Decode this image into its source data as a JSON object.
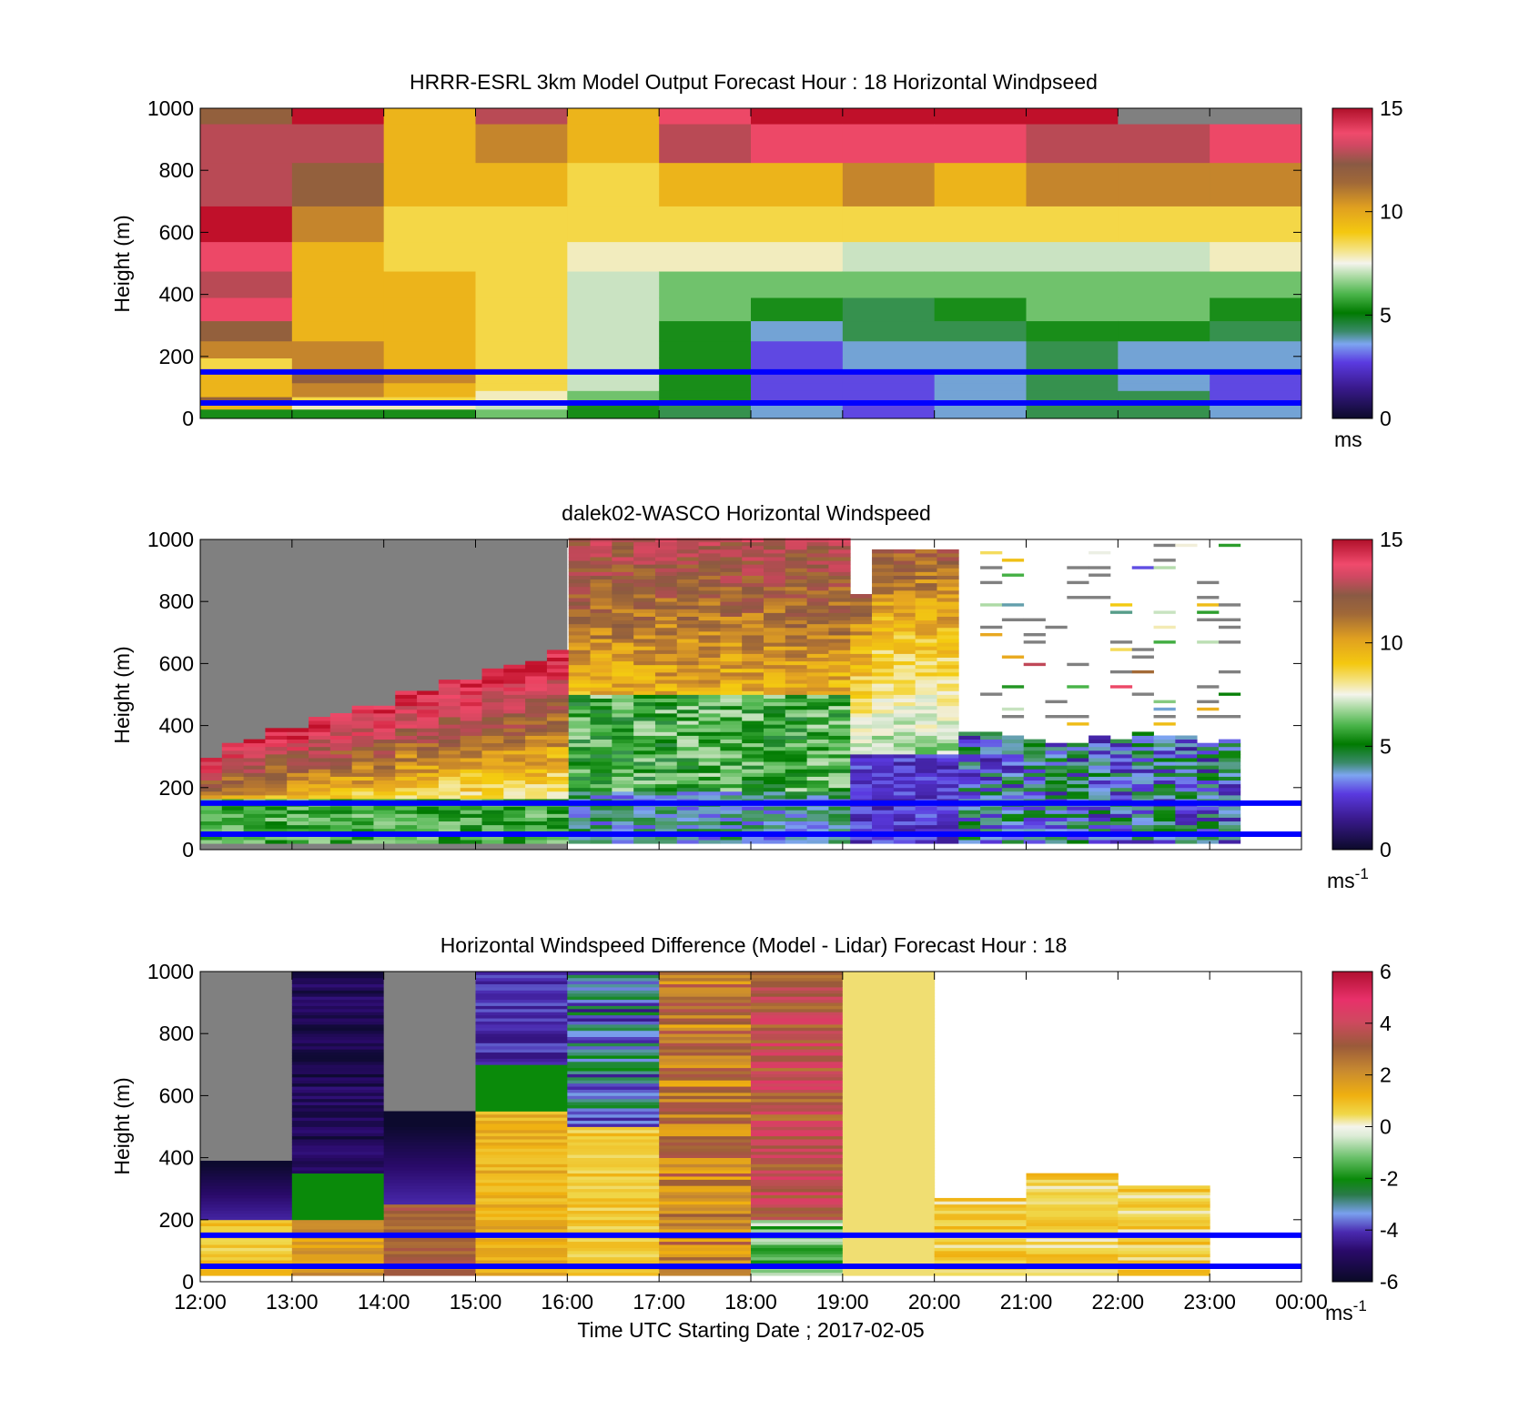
{
  "figure": {
    "xlabel": "Time UTC  Starting Date ; 2017-02-05",
    "time_ticks": [
      "12:00",
      "13:00",
      "14:00",
      "15:00",
      "16:00",
      "17:00",
      "18:00",
      "19:00",
      "20:00",
      "21:00",
      "22:00",
      "23:00",
      "00:00"
    ],
    "height_ticks": [
      "0",
      "200",
      "400",
      "600",
      "800",
      "1000"
    ],
    "ylabel": "Height (m)",
    "reference_lines_m": [
      50,
      150
    ],
    "reference_line_color": "#0000ff",
    "missing_color": "#808080"
  },
  "colormap_speed": [
    "#1a0f3a",
    "#3a1a8e",
    "#5a3ae0",
    "#7da5f0",
    "#4a9a6a",
    "#007a00",
    "#4ab44a",
    "#a8d8a0",
    "#f0f0e8",
    "#f4e89a",
    "#f4cc10",
    "#e8a820",
    "#b87830",
    "#8a5a40",
    "#c04858",
    "#f04868",
    "#c0102a"
  ],
  "colormap_diff": [
    "#0c0a2e",
    "#2a0a6a",
    "#4a2ab0",
    "#7aa0ee",
    "#2a8a4a",
    "#0a8a0a",
    "#6ac06a",
    "#e0e8d8",
    "#f0f0e8",
    "#f0d84a",
    "#f0b010",
    "#c88a30",
    "#9a5a3a",
    "#d04860",
    "#e8306a",
    "#b01030"
  ],
  "chart_data": [
    {
      "type": "heatmap",
      "title": "HRRR-ESRL 3km Model Output   Forecast Hour : 18 Horizontal Windpseed",
      "xlabel": "",
      "ylabel": "Height (m)",
      "ylim": [
        0,
        1000
      ],
      "x": [
        "12:00",
        "13:00",
        "14:00",
        "15:00",
        "16:00",
        "17:00",
        "18:00",
        "19:00",
        "20:00",
        "21:00",
        "22:00",
        "23:00"
      ],
      "y": [
        20,
        40,
        60,
        80,
        100,
        130,
        170,
        220,
        280,
        350,
        430,
        520,
        620,
        750,
        900,
        1000
      ],
      "values": [
        [
          5,
          10,
          12,
          10,
          10,
          10,
          9,
          11,
          12,
          14,
          13,
          14,
          15,
          13,
          13,
          12
        ],
        [
          5,
          8,
          9,
          11,
          11,
          12,
          11,
          11,
          10,
          10,
          10,
          10,
          11,
          12,
          13,
          15
        ],
        [
          5,
          8,
          9,
          10,
          10,
          11,
          10,
          10,
          10,
          10,
          10,
          9,
          9,
          10,
          10,
          10
        ],
        [
          6,
          7,
          8,
          8,
          9,
          9,
          9,
          9,
          9,
          9,
          9,
          9,
          9,
          10,
          11,
          13
        ],
        [
          5,
          5,
          6,
          6,
          7,
          7,
          7,
          7,
          7,
          7,
          7,
          8,
          9,
          9,
          10,
          10
        ],
        [
          4,
          4,
          5,
          5,
          5,
          5,
          5,
          5,
          5,
          6,
          6,
          8,
          9,
          10,
          13,
          14
        ],
        [
          3,
          3,
          2,
          2,
          2,
          2,
          2,
          2,
          3,
          5,
          6,
          8,
          9,
          10,
          14,
          15
        ],
        [
          2,
          2,
          2,
          2,
          2,
          2,
          3,
          3,
          4,
          4,
          6,
          7,
          9,
          11,
          14,
          15
        ],
        [
          3,
          3,
          3,
          3,
          3,
          3,
          3,
          3,
          4,
          5,
          6,
          7,
          9,
          10,
          14,
          15
        ],
        [
          4,
          4,
          4,
          4,
          4,
          4,
          4,
          4,
          5,
          6,
          6,
          7,
          9,
          11,
          13,
          15
        ],
        [
          4,
          4,
          4,
          4,
          3,
          3,
          3,
          3,
          5,
          6,
          6,
          7,
          9,
          11,
          13,
          15
        ],
        [
          3,
          3,
          2,
          2,
          2,
          2,
          3,
          3,
          4,
          5,
          6,
          8,
          9,
          11,
          14,
          15
        ]
      ],
      "colorbar": {
        "min": 0,
        "max": 15,
        "ticks": [
          "0",
          "5",
          "10",
          "15"
        ],
        "unit": "ms"
      },
      "missing_cells": [
        [
          10,
          15
        ],
        [
          11,
          15
        ]
      ]
    },
    {
      "type": "heatmap",
      "title": "dalek02-WASCO  Horizontal Windspeed",
      "xlabel": "",
      "ylabel": "Height (m)",
      "ylim": [
        0,
        1000
      ],
      "xlim": [
        "12:00",
        "00:00"
      ],
      "observed_until": "23:20",
      "profile_top_m": [
        305,
        350,
        445,
        415,
        430,
        420,
        395,
        470,
        470,
        470,
        500,
        505,
        625,
        625,
        625,
        660,
        665,
        665,
        665,
        630,
        630,
        625,
        630,
        660,
        665,
        630,
        635,
        1000,
        1000,
        1000,
        1000,
        1000,
        1000,
        1000,
        1000,
        1000,
        1000,
        1000,
        1000,
        1000,
        1000,
        1000,
        1000,
        1000,
        1000,
        1000,
        1000,
        1000,
        1000,
        1000,
        1000,
        1000,
        1000,
        1000,
        1000,
        1000,
        1000,
        1000,
        1000,
        1000,
        1000,
        1000,
        1000,
        1000,
        1000,
        1000,
        1000,
        1000,
        1000,
        1000
      ],
      "notes_heights_m": {
        "lowest_valid": 20
      },
      "colorbar": {
        "min": 0,
        "max": 15,
        "ticks": [
          "0",
          "5",
          "10",
          "15"
        ],
        "unit": "ms",
        "unit_exp": "-1"
      },
      "description_values": {
        "12:00-16:00": {
          "0-200": 5,
          "200-400": 8,
          "top": 14
        },
        "16:00-19:00": {
          "0-200": 3,
          "200-500": 5,
          "500-1000": 12
        },
        "19:00-23:20": {
          "0-350": 2,
          "350-1000": "sparse"
        }
      }
    },
    {
      "type": "heatmap",
      "title": "Horizontal Windspeed Difference (Model - Lidar) Forecast Hour : 18",
      "xlabel": "Time UTC  Starting Date ; 2017-02-05",
      "ylabel": "Height (m)",
      "ylim": [
        0,
        1000
      ],
      "x": [
        "12:00",
        "13:00",
        "14:00",
        "15:00",
        "16:00",
        "17:00",
        "18:00",
        "19:00",
        "20:00",
        "21:00",
        "22:00",
        "23:00"
      ],
      "column_top_m": [
        390,
        1000,
        550,
        1000,
        1000,
        1000,
        1000,
        1000,
        270,
        345,
        310,
        0
      ],
      "colorbar": {
        "min": -6,
        "max": 6,
        "ticks": [
          "-6",
          "-4",
          "-2",
          "0",
          "2",
          "4",
          "6"
        ],
        "unit": "ms",
        "unit_exp": "-1"
      }
    }
  ],
  "colorbar_labels": {
    "top_unit": "ms",
    "mid_unit": "ms",
    "mid_exp": "-1",
    "bot_unit": "ms",
    "bot_exp": "-1"
  }
}
